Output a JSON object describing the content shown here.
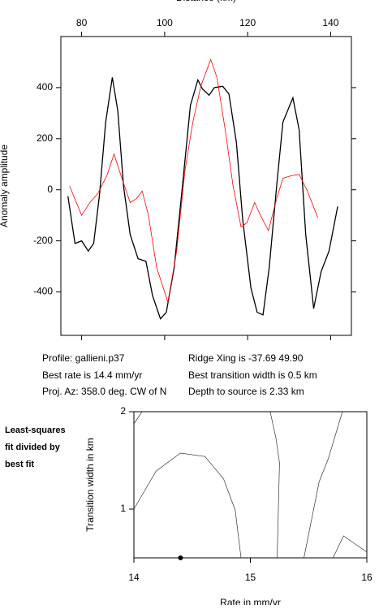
{
  "chart_data": [
    {
      "type": "line",
      "xlabel": "Distance (km)",
      "ylabel": "Anomaly amplitude",
      "xlim": [
        75,
        145
      ],
      "ylim": [
        -570,
        600
      ],
      "xticks": [
        80,
        100,
        120,
        140
      ],
      "yticks": [
        -400,
        -200,
        0,
        200,
        400
      ],
      "series": [
        {
          "color": "#000000",
          "x": [
            76.7,
            78.4,
            80,
            81.6,
            82.9,
            84.3,
            85.8,
            87.4,
            88.7,
            90.1,
            91.7,
            93.6,
            95.5,
            97.1,
            99,
            100.4,
            102.3,
            104.3,
            106.2,
            108,
            109.1,
            110.7,
            112,
            114,
            115.5,
            117.3,
            118.8,
            120.8,
            122.3,
            123.7,
            125.2,
            127,
            128.5,
            130.9,
            132.4,
            134,
            135.9,
            137.7,
            139.6,
            141.7
          ],
          "values": [
            -25,
            -210,
            -200,
            -240,
            -210,
            -20,
            265,
            440,
            310,
            15,
            -175,
            -270,
            -280,
            -415,
            -505,
            -480,
            -305,
            15,
            330,
            430,
            395,
            370,
            400,
            405,
            375,
            185,
            -115,
            -385,
            -480,
            -490,
            -305,
            15,
            265,
            360,
            235,
            -175,
            -465,
            -320,
            -240,
            -65
          ]
        },
        {
          "color": "#ff0000",
          "x": [
            77.1,
            80,
            82,
            83.9,
            86.2,
            87.8,
            89.7,
            91.7,
            93.2,
            94.6,
            96.1,
            98.1,
            100.8,
            102.9,
            104.9,
            106.8,
            108.7,
            111.1,
            112.6,
            114.6,
            116.5,
            118.4,
            119.8,
            121.7,
            123.1,
            125,
            127,
            128.5,
            130.5,
            132.4,
            134.4,
            136.9
          ],
          "values": [
            15,
            -100,
            -50,
            -15,
            60,
            140,
            45,
            -50,
            -35,
            -5,
            -100,
            -305,
            -440,
            -240,
            75,
            265,
            405,
            510,
            440,
            235,
            15,
            -145,
            -130,
            -50,
            -100,
            -160,
            -35,
            45,
            55,
            60,
            -5,
            -110
          ]
        }
      ],
      "annotations": [
        "Profile: gallieni.p37",
        "Ridge Xing is -37.69 49.90",
        "Best rate is 14.4 mm/yr",
        "Best transition width is 0.5 km",
        "Proj. Az: 358.0 deg. CW of N",
        "Depth to source is   2.33 km"
      ]
    },
    {
      "type": "contour",
      "title": [
        "Least-squares",
        "fit divided by",
        "best fit"
      ],
      "xlabel": "Rate in mm/yr",
      "ylabel": "Transition width in km",
      "xlim": [
        14,
        16
      ],
      "ylim": [
        0.5,
        2
      ],
      "xticks": [
        14,
        15,
        16
      ],
      "yticks": [
        1,
        2
      ],
      "contours": [
        {
          "x": [
            14,
            14.07
          ],
          "y": [
            1.875,
            2.0
          ]
        },
        {
          "x": [
            14,
            14.19,
            14.4,
            14.61,
            14.77,
            14.87,
            14.92
          ],
          "y": [
            1.0,
            1.39,
            1.575,
            1.54,
            1.31,
            0.99,
            0.5
          ]
        },
        {
          "x": [
            15.17,
            15.22,
            15.25,
            15.23
          ],
          "y": [
            2.0,
            1.725,
            1.475,
            0.5
          ]
        },
        {
          "x": [
            15.46,
            15.59,
            15.67,
            15.79
          ],
          "y": [
            0.5,
            1.28,
            1.52,
            2.0
          ]
        },
        {
          "x": [
            15.71,
            15.8,
            15.92,
            16
          ],
          "y": [
            0.5,
            0.725,
            0.625,
            0.56
          ]
        }
      ],
      "best": {
        "x": 14.4,
        "y": 0.5
      }
    }
  ]
}
